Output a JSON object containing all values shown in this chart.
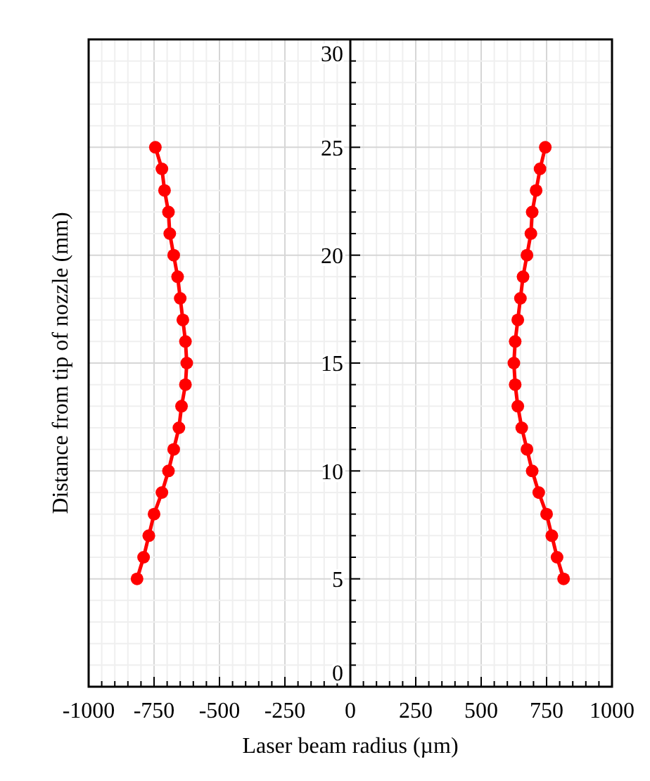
{
  "chart_data": {
    "type": "line",
    "xlabel": "Laser beam radius (µm)",
    "ylabel": "Distance from tip of nozzle (mm)",
    "series": [
      {
        "color": "#ff0000",
        "x": [
          -815,
          -790,
          -770,
          -750,
          -720,
          -695,
          -675,
          -655,
          -645,
          -630,
          -625,
          -630,
          -640,
          -650,
          -660,
          -675,
          -690,
          -695,
          -710,
          -720,
          -745
        ],
        "values": [
          5,
          6,
          7,
          8,
          9,
          10,
          11,
          12,
          13,
          14,
          15,
          16,
          17,
          18,
          19,
          20,
          21,
          22,
          23,
          24,
          25
        ]
      },
      {
        "color": "#ff0000",
        "x": [
          815,
          790,
          770,
          750,
          720,
          695,
          675,
          655,
          640,
          630,
          625,
          630,
          640,
          650,
          660,
          675,
          690,
          695,
          710,
          725,
          745
        ],
        "values": [
          5,
          6,
          7,
          8,
          9,
          10,
          11,
          12,
          13,
          14,
          15,
          16,
          17,
          18,
          19,
          20,
          21,
          22,
          23,
          24,
          25
        ]
      }
    ],
    "marker": "circle",
    "line_style": "solid",
    "grid": true,
    "xlim": [
      -1000,
      1000
    ],
    "ylim": [
      0,
      30
    ],
    "xticks": [
      -1000,
      {
        "value": -950,
        "label": null
      },
      {
        "value": -900,
        "label": null
      },
      {
        "value": -850,
        "label": null
      },
      {
        "value": -800,
        "label": null
      },
      -750,
      {
        "value": -700,
        "label": null
      },
      {
        "value": -650,
        "label": null
      },
      {
        "value": -600,
        "label": null
      },
      {
        "value": -550,
        "label": null
      },
      -500,
      {
        "value": -450,
        "label": null
      },
      {
        "value": -400,
        "label": null
      },
      {
        "value": -350,
        "label": null
      },
      {
        "value": -300,
        "label": null
      },
      -250,
      {
        "value": -200,
        "label": null
      },
      {
        "value": -150,
        "label": null
      },
      {
        "value": -100,
        "label": null
      },
      {
        "value": -50,
        "label": null
      },
      0,
      {
        "value": 50,
        "label": null
      },
      {
        "value": 100,
        "label": null
      },
      {
        "value": 150,
        "label": null
      },
      {
        "value": 200,
        "label": null
      },
      250,
      {
        "value": 300,
        "label": null
      },
      {
        "value": 350,
        "label": null
      },
      {
        "value": 400,
        "label": null
      },
      {
        "value": 450,
        "label": null
      },
      500,
      {
        "value": 550,
        "label": null
      },
      {
        "value": 600,
        "label": null
      },
      {
        "value": 650,
        "label": null
      },
      {
        "value": 700,
        "label": null
      },
      750,
      {
        "value": 800,
        "label": null
      },
      {
        "value": 850,
        "label": null
      },
      {
        "value": 900,
        "label": null
      },
      {
        "value": 950,
        "label": null
      },
      1000
    ],
    "yticks": [
      0,
      {
        "value": 1,
        "label": null
      },
      {
        "value": 2,
        "label": null
      },
      {
        "value": 3,
        "label": null
      },
      {
        "value": 4,
        "label": null
      },
      5,
      {
        "value": 6,
        "label": null
      },
      {
        "value": 7,
        "label": null
      },
      {
        "value": 8,
        "label": null
      },
      {
        "value": 9,
        "label": null
      },
      10,
      {
        "value": 11,
        "label": null
      },
      {
        "value": 12,
        "label": null
      },
      {
        "value": 13,
        "label": null
      },
      {
        "value": 14,
        "label": null
      },
      15,
      {
        "value": 16,
        "label": null
      },
      {
        "value": 17,
        "label": null
      },
      {
        "value": 18,
        "label": null
      },
      {
        "value": 19,
        "label": null
      },
      20,
      {
        "value": 21,
        "label": null
      },
      {
        "value": 22,
        "label": null
      },
      {
        "value": 23,
        "label": null
      },
      {
        "value": 24,
        "label": null
      },
      25,
      {
        "value": 26,
        "label": null
      },
      {
        "value": 27,
        "label": null
      },
      {
        "value": 28,
        "label": null
      },
      {
        "value": 29,
        "label": null
      },
      30
    ]
  }
}
